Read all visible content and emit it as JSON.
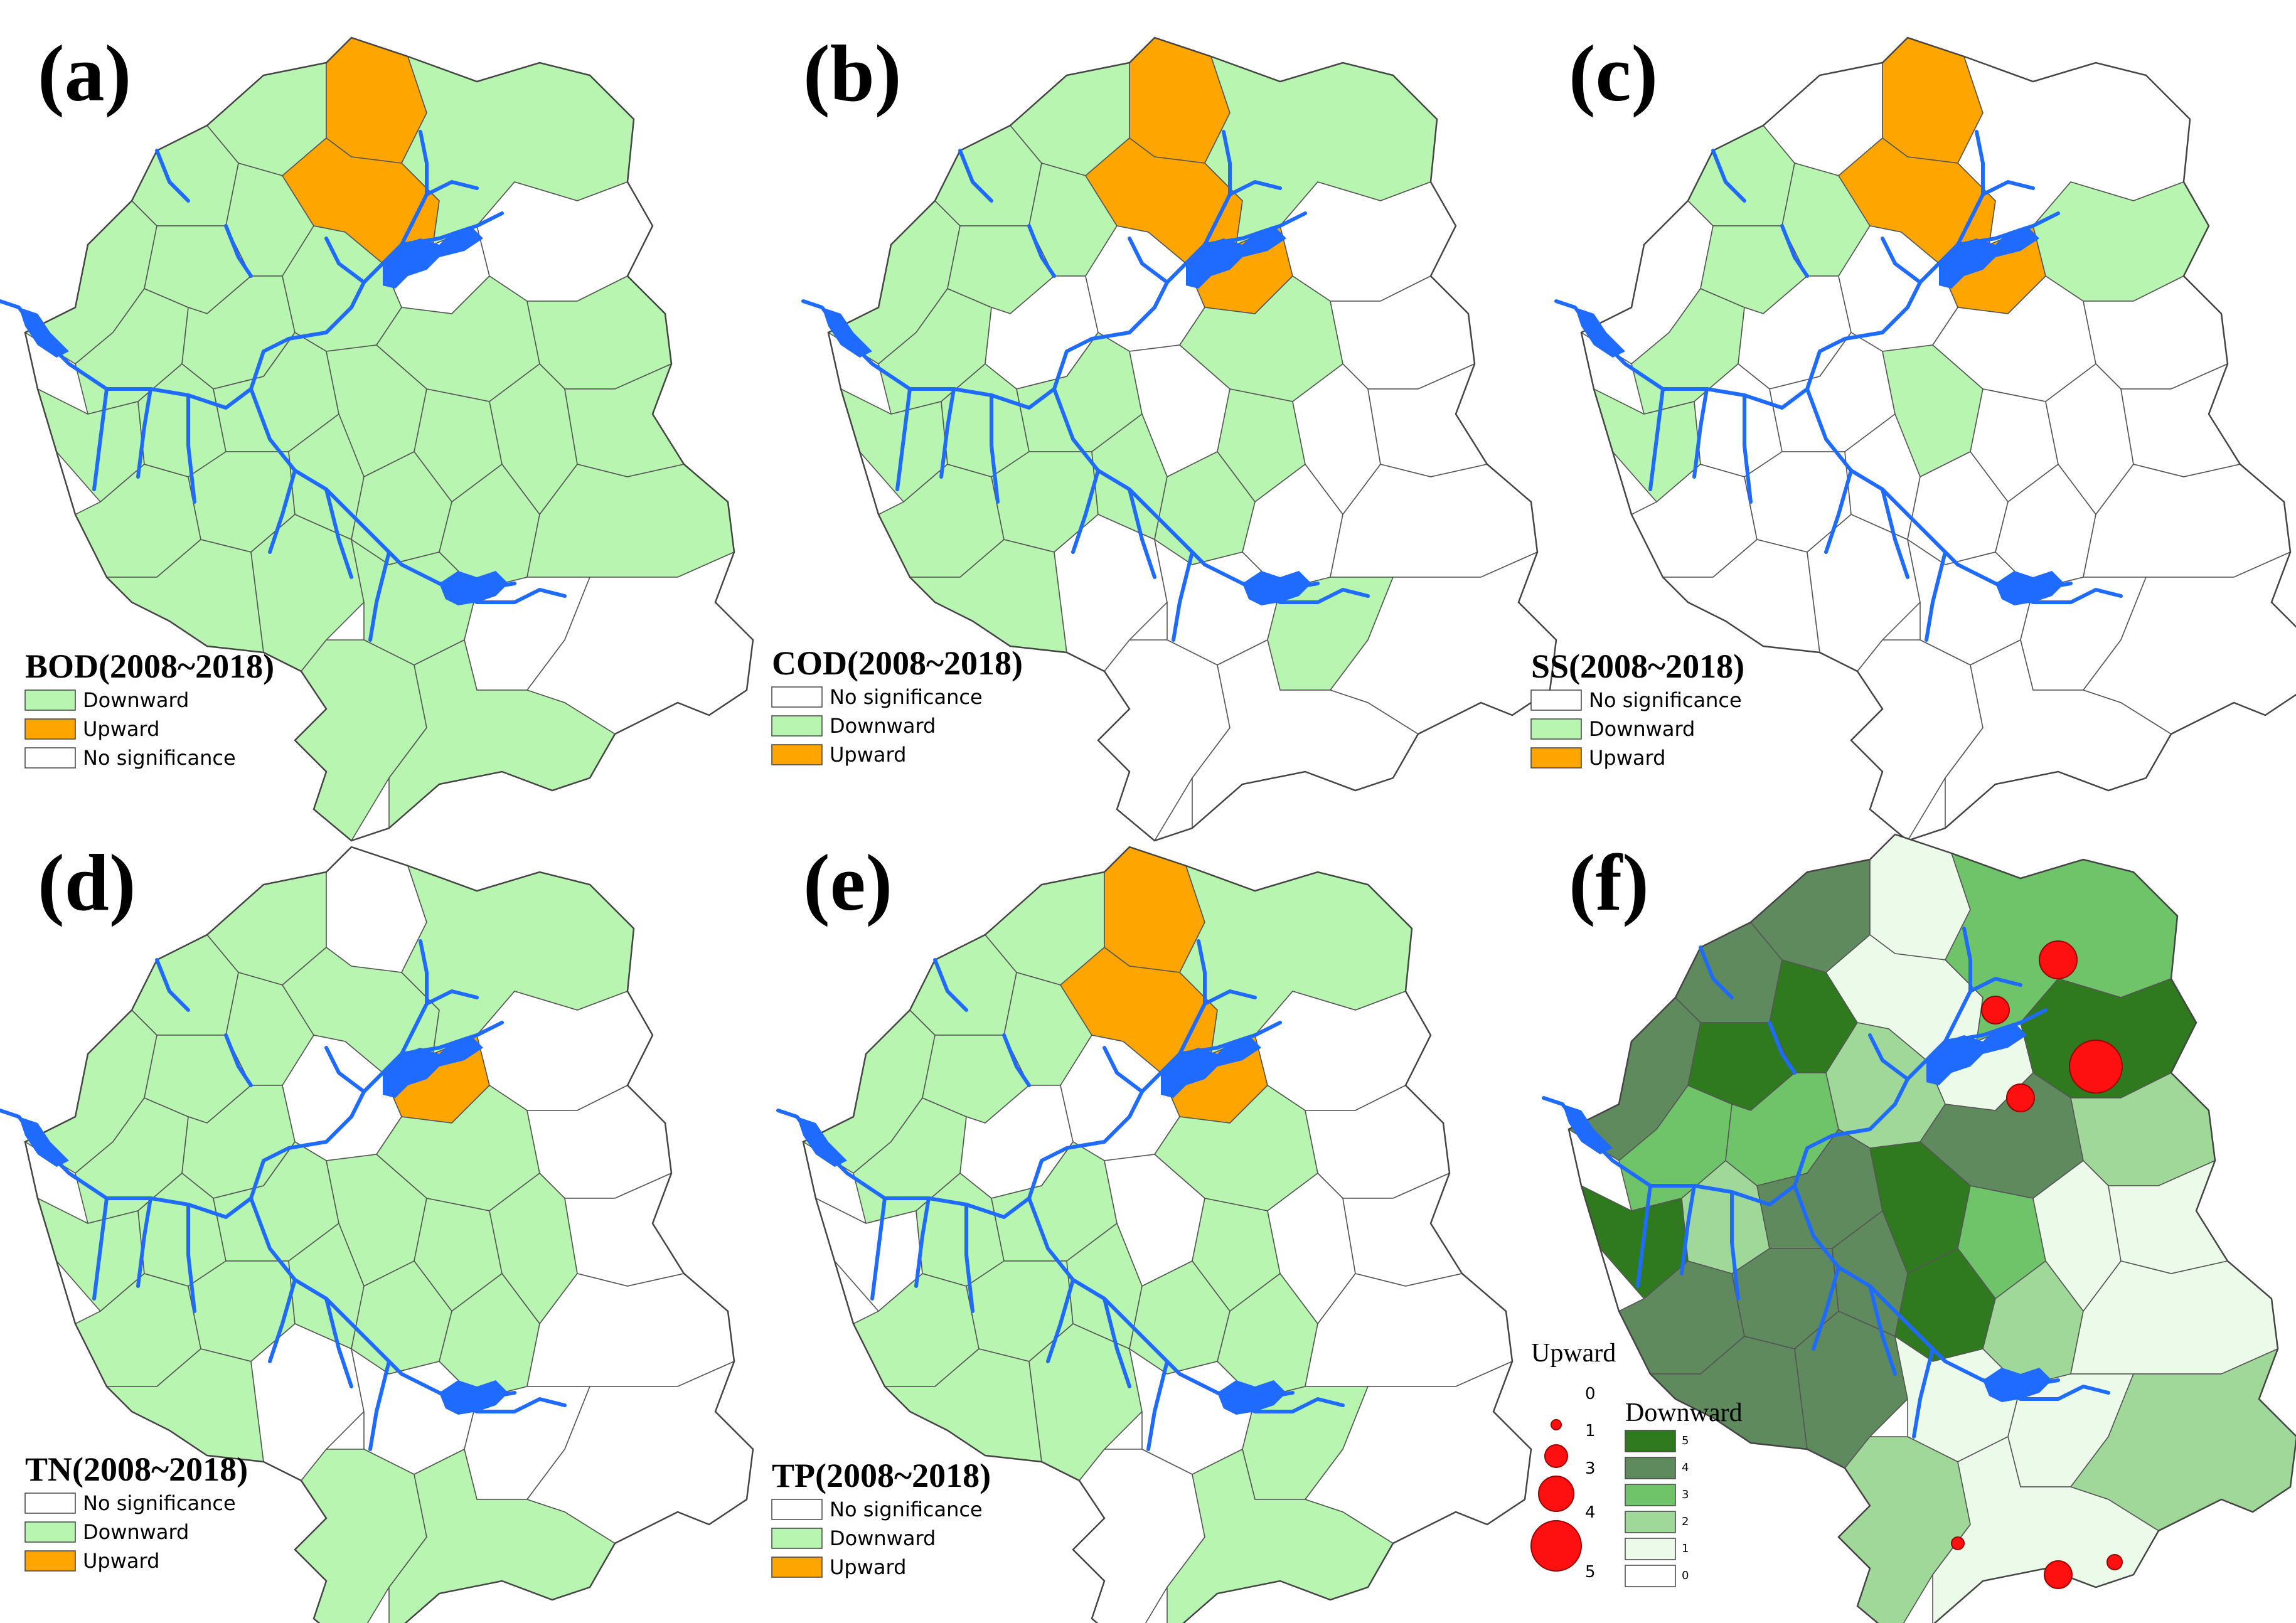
{
  "colors": {
    "downward": "#b7f5b1",
    "upward": "#ffa500",
    "no_significance": "#ffffff",
    "river": "#1f6bff",
    "circle": "#ff1010",
    "boundary": "#555555",
    "green_levels": [
      "#ffffff",
      "#ecfbe9",
      "#a0d89a",
      "#6fc46a",
      "#5e8a5e",
      "#2f7a1e"
    ]
  },
  "panels": [
    {
      "letter": "(a)",
      "legend_title": "BOD(2008~2018)",
      "legend": [
        {
          "label": "Downward",
          "class": "downward"
        },
        {
          "label": "Upward",
          "class": "upward"
        },
        {
          "label": "No significance",
          "class": "no_significance"
        }
      ],
      "map_class": {
        "upward": "(a)",
        "pattern": "a"
      }
    },
    {
      "letter": "(b)",
      "legend_title": "COD(2008~2018)",
      "legend": [
        {
          "label": "No significance",
          "class": "no_significance"
        },
        {
          "label": "Downward",
          "class": "downward"
        },
        {
          "label": "Upward",
          "class": "upward"
        }
      ],
      "map_class": {
        "pattern": "b"
      }
    },
    {
      "letter": "(c)",
      "legend_title": "SS(2008~2018)",
      "legend": [
        {
          "label": "No significance",
          "class": "no_significance"
        },
        {
          "label": "Downward",
          "class": "downward"
        },
        {
          "label": "Upward",
          "class": "upward"
        }
      ],
      "map_class": {
        "pattern": "c"
      }
    },
    {
      "letter": "(d)",
      "legend_title": "TN(2008~2018)",
      "legend": [
        {
          "label": "No significance",
          "class": "no_significance"
        },
        {
          "label": "Downward",
          "class": "downward"
        },
        {
          "label": "Upward",
          "class": "upward"
        }
      ],
      "map_class": {
        "pattern": "d"
      }
    },
    {
      "letter": "(e)",
      "legend_title": "TP(2008~2018)",
      "legend": [
        {
          "label": "No significance",
          "class": "no_significance"
        },
        {
          "label": "Downward",
          "class": "downward"
        },
        {
          "label": "Upward",
          "class": "upward"
        }
      ],
      "map_class": {
        "pattern": "e"
      }
    },
    {
      "letter": "(f)",
      "upward_title": "Upward",
      "downward_title": "Downward",
      "upward_sizes": [
        "0",
        "1",
        "3",
        "4",
        "5"
      ],
      "downward_levels": [
        "5",
        "4",
        "3",
        "2",
        "1",
        "0"
      ]
    }
  ]
}
